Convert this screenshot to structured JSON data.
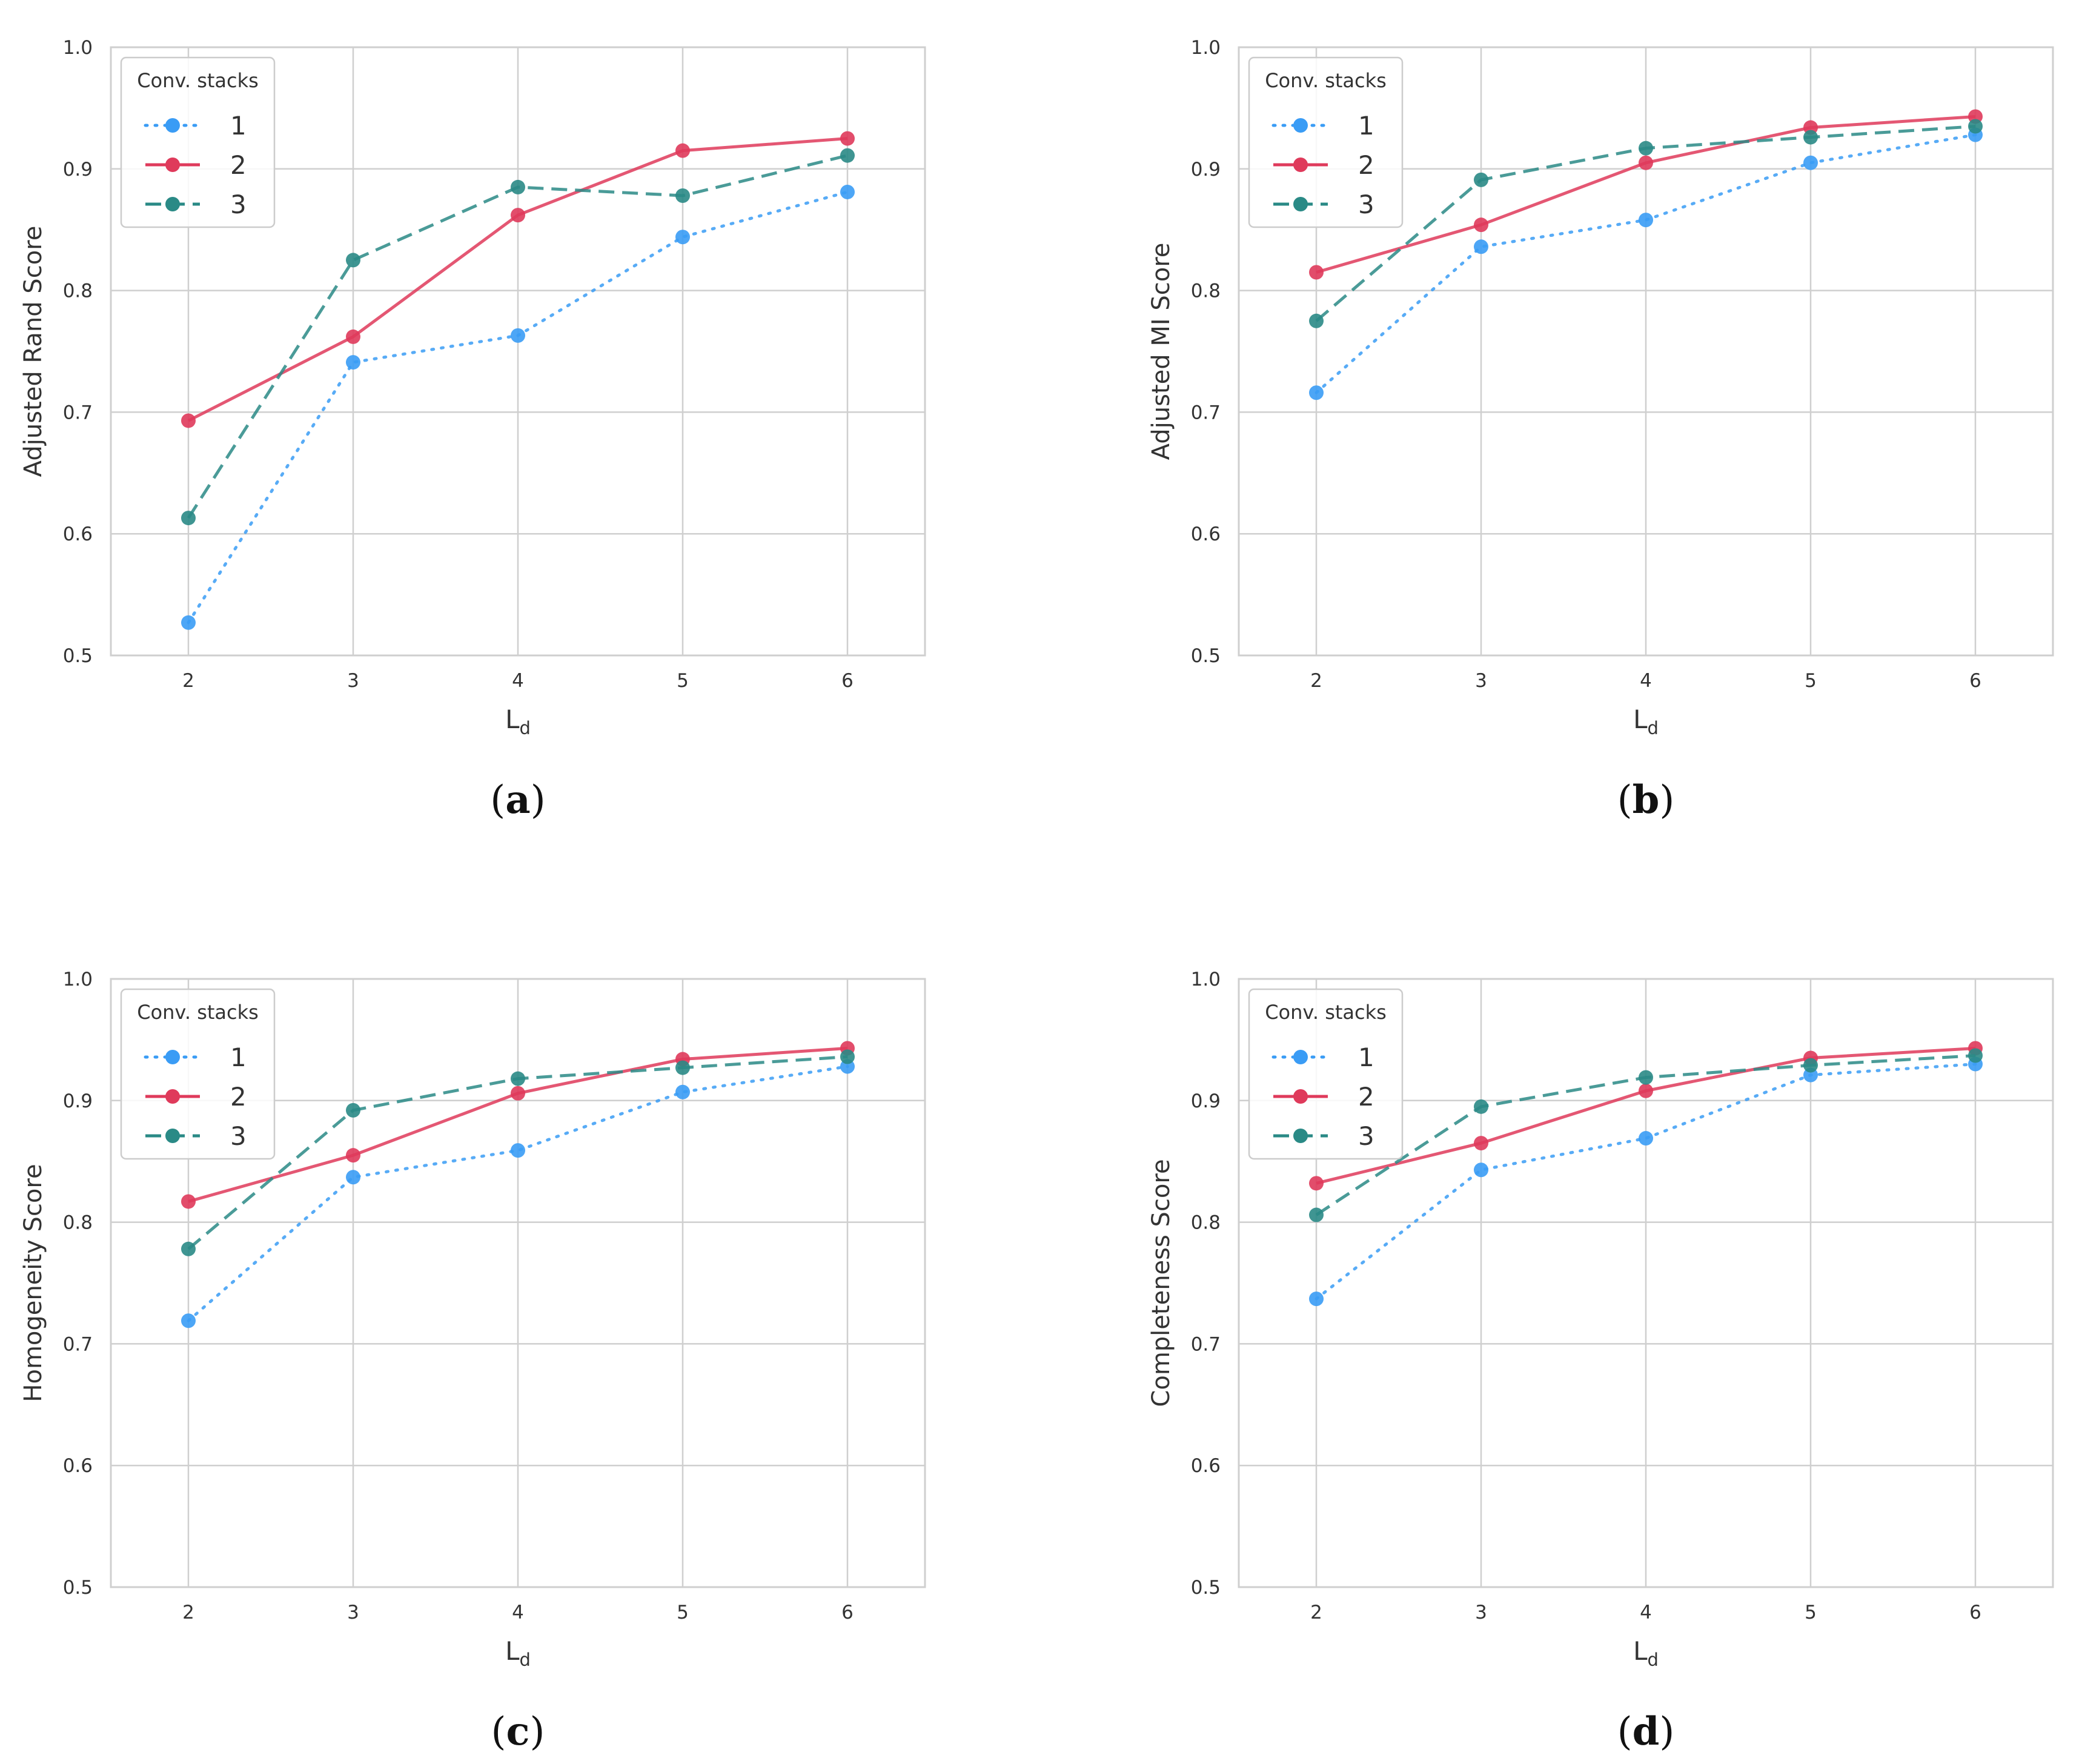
{
  "legend_title": "Conv. stacks",
  "series_meta": [
    {
      "name": "1",
      "color": "#3a9cf5",
      "dash": "dotted"
    },
    {
      "name": "2",
      "color": "#df3a5b",
      "dash": "solid"
    },
    {
      "name": "3",
      "color": "#2a8a86",
      "dash": "dashed"
    }
  ],
  "chart_data": [
    {
      "type": "line",
      "caption": "a",
      "xlabel": "L",
      "xlabel_sub": "d",
      "ylabel": "Adjusted Rand Score",
      "x": [
        2,
        3,
        4,
        5,
        6
      ],
      "xticks": [
        "2",
        "3",
        "4",
        "5",
        "6"
      ],
      "yticks": [
        "0.5",
        "0.6",
        "0.7",
        "0.8",
        "0.9",
        "1.0"
      ],
      "ylim": [
        0.5,
        1.0
      ],
      "grid": true,
      "legend_position": "top-left",
      "series": [
        {
          "name": "1",
          "values": [
            0.527,
            0.741,
            0.763,
            0.844,
            0.881
          ]
        },
        {
          "name": "2",
          "values": [
            0.693,
            0.762,
            0.862,
            0.915,
            0.925
          ]
        },
        {
          "name": "3",
          "values": [
            0.613,
            0.825,
            0.885,
            0.878,
            0.911
          ]
        }
      ]
    },
    {
      "type": "line",
      "caption": "b",
      "xlabel": "L",
      "xlabel_sub": "d",
      "ylabel": "Adjusted MI Score",
      "x": [
        2,
        3,
        4,
        5,
        6
      ],
      "xticks": [
        "2",
        "3",
        "4",
        "5",
        "6"
      ],
      "yticks": [
        "0.5",
        "0.6",
        "0.7",
        "0.8",
        "0.9",
        "1.0"
      ],
      "ylim": [
        0.5,
        1.0
      ],
      "grid": true,
      "legend_position": "top-left",
      "series": [
        {
          "name": "1",
          "values": [
            0.716,
            0.836,
            0.858,
            0.905,
            0.928
          ]
        },
        {
          "name": "2",
          "values": [
            0.815,
            0.854,
            0.905,
            0.934,
            0.943
          ]
        },
        {
          "name": "3",
          "values": [
            0.775,
            0.891,
            0.917,
            0.926,
            0.935
          ]
        }
      ]
    },
    {
      "type": "line",
      "caption": "c",
      "xlabel": "L",
      "xlabel_sub": "d",
      "ylabel": "Homogeneity Score",
      "x": [
        2,
        3,
        4,
        5,
        6
      ],
      "xticks": [
        "2",
        "3",
        "4",
        "5",
        "6"
      ],
      "yticks": [
        "0.5",
        "0.6",
        "0.7",
        "0.8",
        "0.9",
        "1.0"
      ],
      "ylim": [
        0.5,
        1.0
      ],
      "grid": true,
      "legend_position": "top-left",
      "series": [
        {
          "name": "1",
          "values": [
            0.719,
            0.837,
            0.859,
            0.907,
            0.928
          ]
        },
        {
          "name": "2",
          "values": [
            0.817,
            0.855,
            0.906,
            0.934,
            0.943
          ]
        },
        {
          "name": "3",
          "values": [
            0.778,
            0.892,
            0.918,
            0.927,
            0.936
          ]
        }
      ]
    },
    {
      "type": "line",
      "caption": "d",
      "xlabel": "L",
      "xlabel_sub": "d",
      "ylabel": "Completeness Score",
      "x": [
        2,
        3,
        4,
        5,
        6
      ],
      "xticks": [
        "2",
        "3",
        "4",
        "5",
        "6"
      ],
      "yticks": [
        "0.5",
        "0.6",
        "0.7",
        "0.8",
        "0.9",
        "1.0"
      ],
      "ylim": [
        0.5,
        1.0
      ],
      "grid": true,
      "legend_position": "top-left",
      "series": [
        {
          "name": "1",
          "values": [
            0.737,
            0.843,
            0.869,
            0.921,
            0.93
          ]
        },
        {
          "name": "2",
          "values": [
            0.832,
            0.865,
            0.908,
            0.935,
            0.943
          ]
        },
        {
          "name": "3",
          "values": [
            0.806,
            0.895,
            0.919,
            0.929,
            0.937
          ]
        }
      ]
    }
  ]
}
